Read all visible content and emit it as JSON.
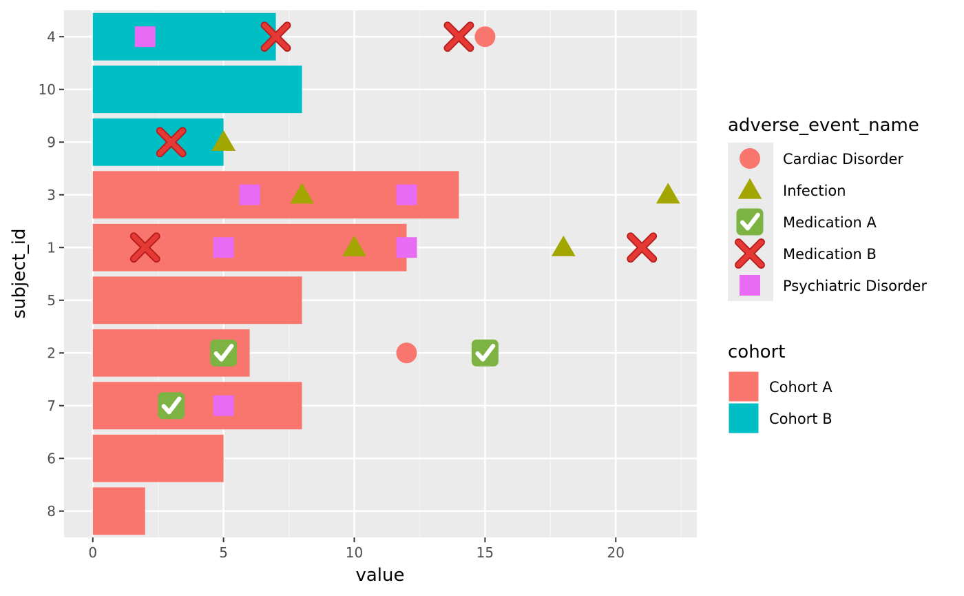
{
  "chart_data": {
    "type": "bar",
    "orientation": "horizontal",
    "xlabel": "value",
    "ylabel": "subject_id",
    "xlim": [
      -1.1,
      23.1
    ],
    "x_ticks": [
      0,
      5,
      10,
      15,
      20
    ],
    "grid": true,
    "categories": [
      "4",
      "10",
      "9",
      "3",
      "1",
      "5",
      "2",
      "7",
      "6",
      "8"
    ],
    "bars": [
      {
        "subject_id": "4",
        "value": 7,
        "cohort": "Cohort B"
      },
      {
        "subject_id": "10",
        "value": 8,
        "cohort": "Cohort B"
      },
      {
        "subject_id": "9",
        "value": 5,
        "cohort": "Cohort B"
      },
      {
        "subject_id": "3",
        "value": 14,
        "cohort": "Cohort A"
      },
      {
        "subject_id": "1",
        "value": 12,
        "cohort": "Cohort A"
      },
      {
        "subject_id": "5",
        "value": 8,
        "cohort": "Cohort A"
      },
      {
        "subject_id": "2",
        "value": 6,
        "cohort": "Cohort A"
      },
      {
        "subject_id": "7",
        "value": 8,
        "cohort": "Cohort A"
      },
      {
        "subject_id": "6",
        "value": 5,
        "cohort": "Cohort A"
      },
      {
        "subject_id": "8",
        "value": 2,
        "cohort": "Cohort A"
      }
    ],
    "events": [
      {
        "subject_id": "4",
        "value": 2,
        "event": "Psychiatric Disorder"
      },
      {
        "subject_id": "4",
        "value": 7,
        "event": "Medication B"
      },
      {
        "subject_id": "4",
        "value": 14,
        "event": "Medication B"
      },
      {
        "subject_id": "4",
        "value": 15,
        "event": "Cardiac Disorder"
      },
      {
        "subject_id": "9",
        "value": 3,
        "event": "Medication B"
      },
      {
        "subject_id": "9",
        "value": 5,
        "event": "Infection"
      },
      {
        "subject_id": "3",
        "value": 6,
        "event": "Psychiatric Disorder"
      },
      {
        "subject_id": "3",
        "value": 8,
        "event": "Infection"
      },
      {
        "subject_id": "3",
        "value": 12,
        "event": "Psychiatric Disorder"
      },
      {
        "subject_id": "3",
        "value": 22,
        "event": "Infection"
      },
      {
        "subject_id": "1",
        "value": 2,
        "event": "Medication B"
      },
      {
        "subject_id": "1",
        "value": 5,
        "event": "Psychiatric Disorder"
      },
      {
        "subject_id": "1",
        "value": 10,
        "event": "Infection"
      },
      {
        "subject_id": "1",
        "value": 12,
        "event": "Psychiatric Disorder"
      },
      {
        "subject_id": "1",
        "value": 18,
        "event": "Infection"
      },
      {
        "subject_id": "1",
        "value": 21,
        "event": "Medication B"
      },
      {
        "subject_id": "2",
        "value": 5,
        "event": "Medication A"
      },
      {
        "subject_id": "2",
        "value": 12,
        "event": "Cardiac Disorder"
      },
      {
        "subject_id": "2",
        "value": 15,
        "event": "Medication A"
      },
      {
        "subject_id": "7",
        "value": 3,
        "event": "Medication A"
      },
      {
        "subject_id": "7",
        "value": 5,
        "event": "Psychiatric Disorder"
      }
    ],
    "legends": [
      {
        "title": "adverse_event_name",
        "position": "right",
        "entries": [
          {
            "label": "Cardiac Disorder",
            "shape": "circle",
            "color": "#F8766D"
          },
          {
            "label": "Infection",
            "shape": "triangle",
            "color": "#A3A500"
          },
          {
            "label": "Medication A",
            "shape": "check-emoji",
            "color": "#7CB342"
          },
          {
            "label": "Medication B",
            "shape": "cross-emoji",
            "color": "#E53935"
          },
          {
            "label": "Psychiatric Disorder",
            "shape": "square",
            "color": "#E76BF3"
          }
        ]
      },
      {
        "title": "cohort",
        "position": "right",
        "entries": [
          {
            "label": "Cohort A",
            "color": "#F8766D"
          },
          {
            "label": "Cohort B",
            "color": "#00BFC4"
          }
        ]
      }
    ],
    "colors": {
      "panel_background": "#EBEBEB",
      "grid_major": "#FFFFFF",
      "grid_minor": "#F5F5F5",
      "legend_key_background": "#EBEBEB"
    }
  }
}
